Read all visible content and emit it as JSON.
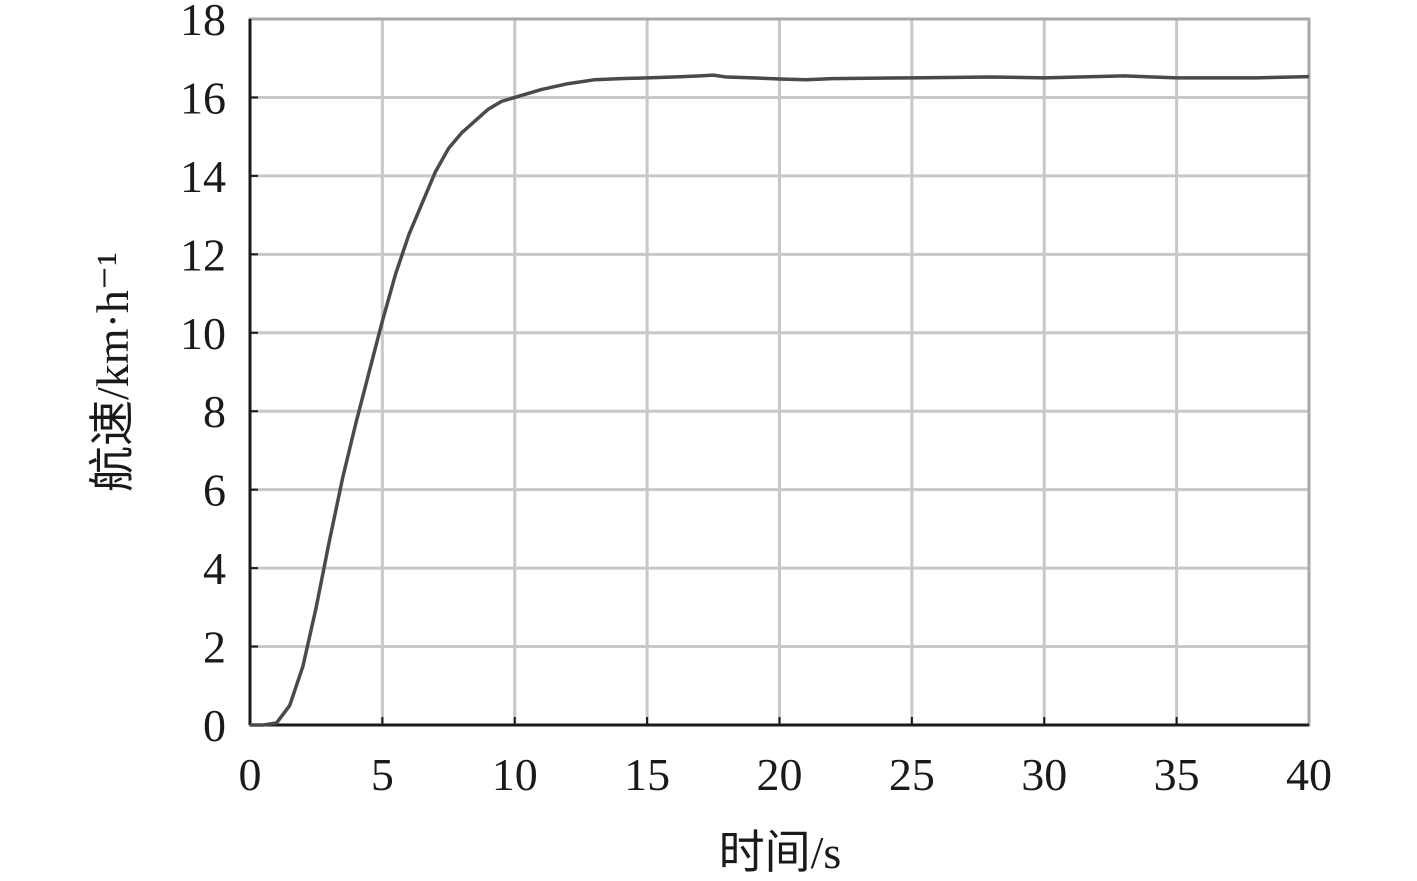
{
  "chart_data": {
    "type": "line",
    "x_label": "时间/s",
    "y_label": "航速/km·h⁻¹",
    "xlim": [
      0,
      40
    ],
    "xticks": [
      0,
      5,
      10,
      15,
      20,
      25,
      30,
      35,
      40
    ],
    "ylim": [
      0,
      18
    ],
    "yticks": [
      0,
      2,
      4,
      6,
      8,
      10,
      12,
      14,
      16,
      18
    ],
    "grid": true,
    "series": [
      {
        "color": "#4a4a4a",
        "x": [
          0,
          0.5,
          1,
          1.5,
          2,
          2.5,
          3,
          3.5,
          4,
          4.5,
          5,
          5.5,
          6,
          6.5,
          7,
          7.5,
          8,
          8.5,
          9,
          9.5,
          10,
          11,
          12,
          13,
          14,
          15,
          16,
          17,
          17.5,
          18,
          19,
          20,
          21,
          22,
          25,
          28,
          30,
          33,
          35,
          38,
          40
        ],
        "values": [
          0,
          0,
          0.05,
          0.5,
          1.5,
          3,
          4.7,
          6.3,
          7.7,
          9,
          10.3,
          11.5,
          12.5,
          13.3,
          14.1,
          14.7,
          15.1,
          15.4,
          15.7,
          15.9,
          16.0,
          16.2,
          16.35,
          16.45,
          16.48,
          16.5,
          16.52,
          16.55,
          16.57,
          16.52,
          16.5,
          16.47,
          16.45,
          16.48,
          16.5,
          16.52,
          16.5,
          16.55,
          16.5,
          16.5,
          16.53
        ]
      }
    ]
  }
}
